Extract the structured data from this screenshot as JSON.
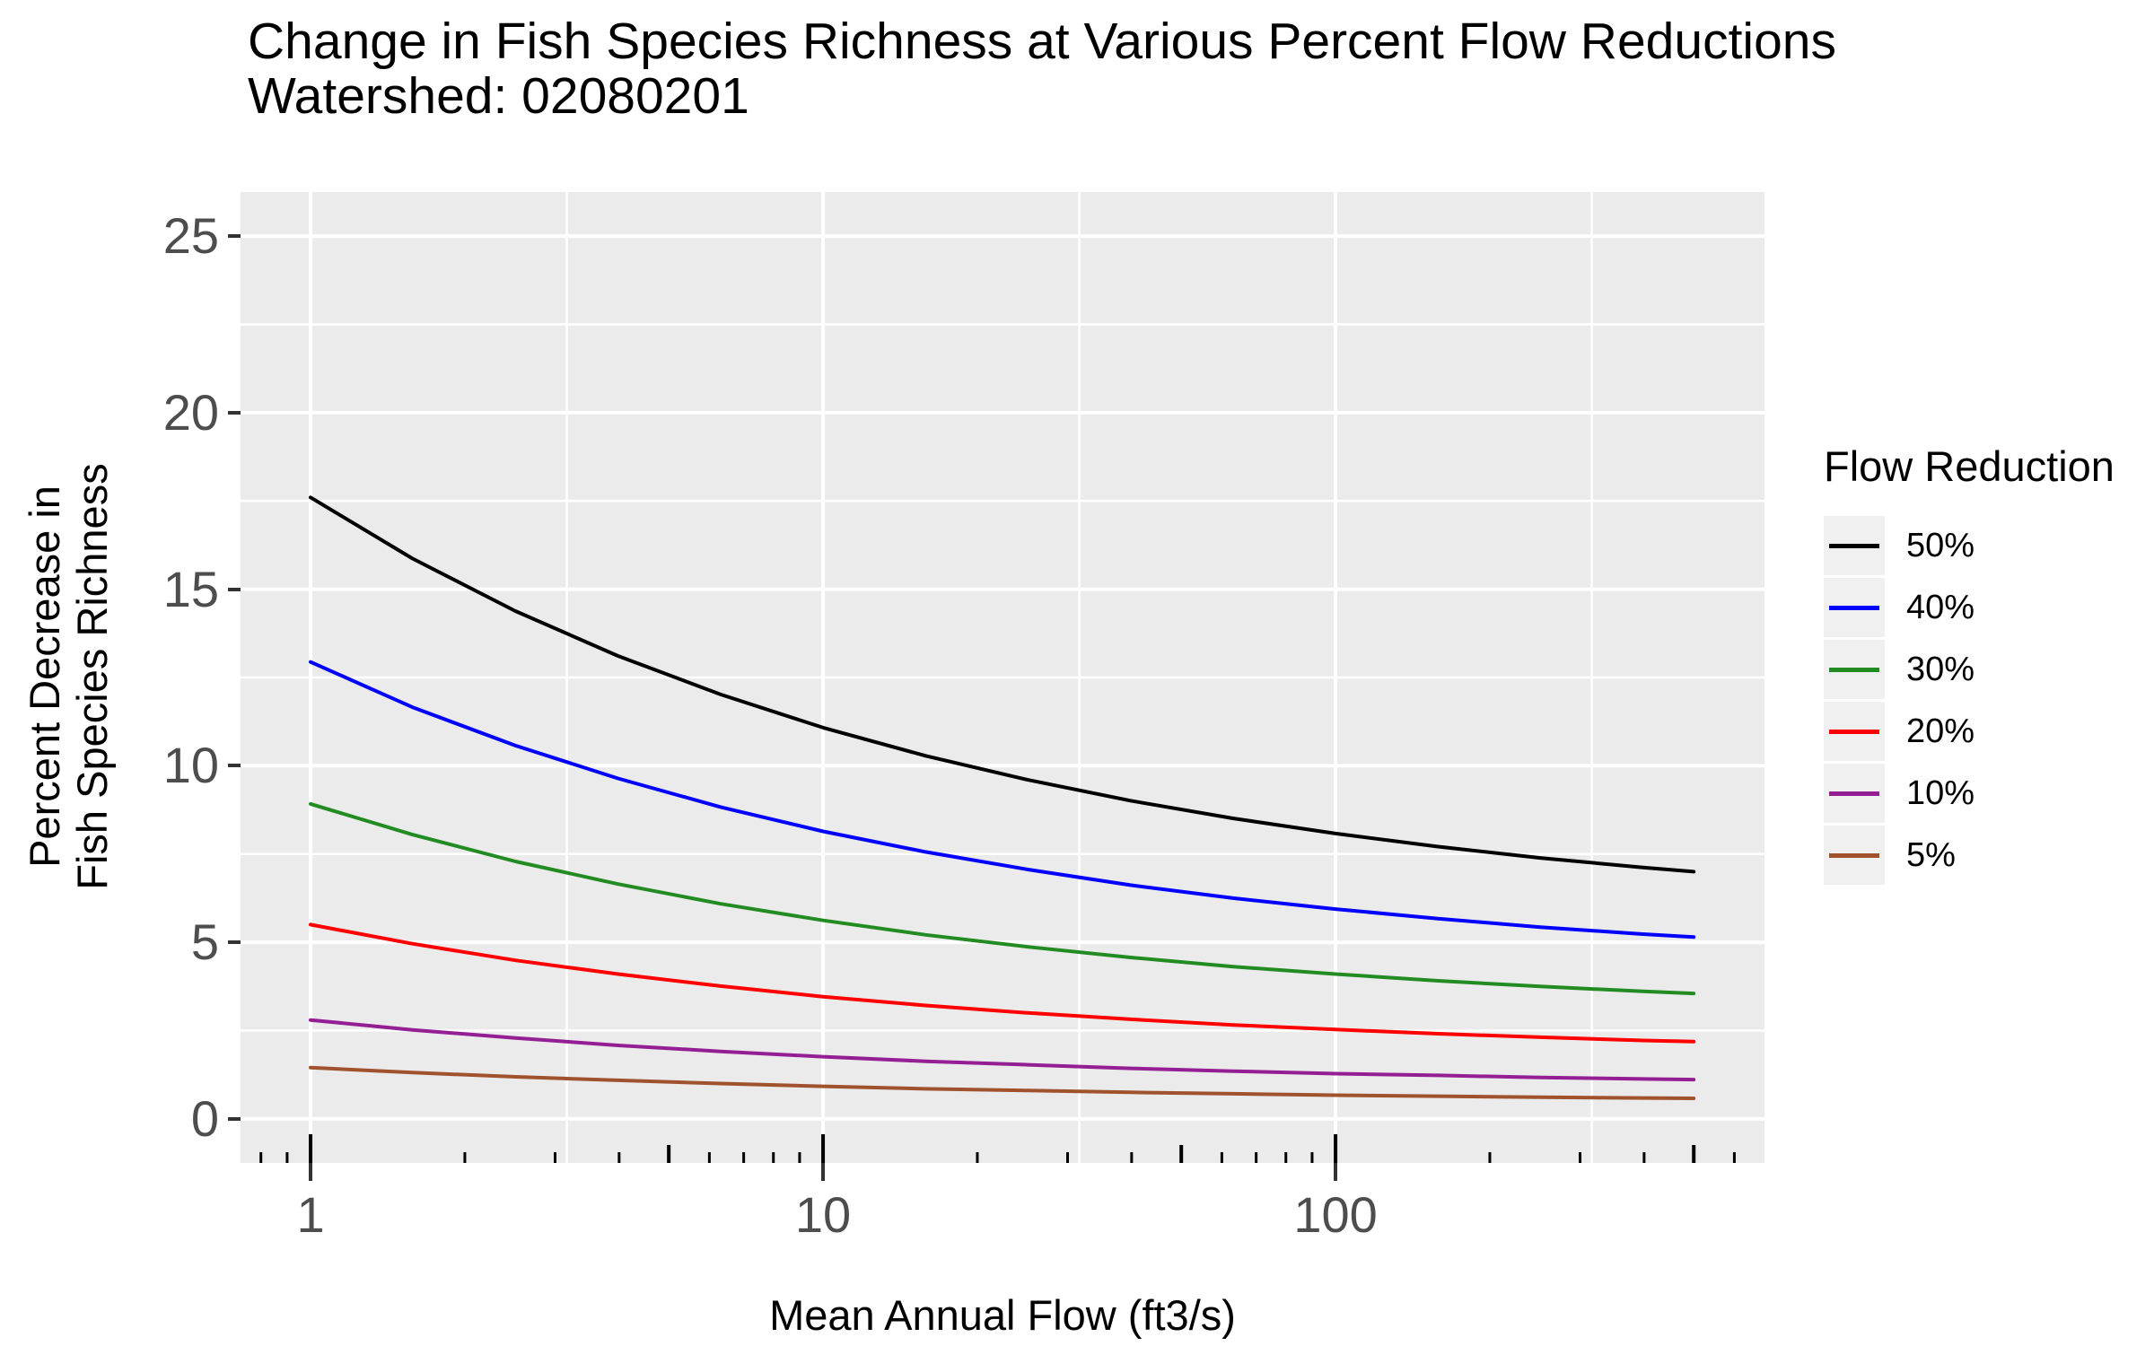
{
  "figure": {
    "title_line1": "Change in Fish Species Richness at Various Percent Flow Reductions",
    "title_line2": "Watershed: 02080201"
  },
  "colors": {
    "page_bg": "#FFFFFF",
    "panel_bg": "#EBEBEB",
    "grid_major": "#FFFFFF",
    "grid_minor": "#FFFFFF",
    "axis_tick": "#333333",
    "tick_label": "#4D4D4D",
    "text": "#000000",
    "legend_key_bg": "#F0F0F0"
  },
  "chart_data": {
    "type": "line",
    "title": "Change in Fish Species Richness at Various Percent Flow Reductions",
    "subtitle": "Watershed: 02080201",
    "xlabel": "Mean Annual Flow (ft3/s)",
    "ylabel_line1": "Percent Decrease in",
    "ylabel_line2": "Fish Species Richness",
    "x_scale": "log10",
    "grid": true,
    "xlim": [
      0.73,
      687
    ],
    "ylim": [
      -1.25,
      26.25
    ],
    "x_major_ticks": [
      1,
      10,
      100
    ],
    "x_tick_labels": [
      "1",
      "10",
      "100"
    ],
    "y_major_ticks": [
      0,
      5,
      10,
      15,
      20,
      25
    ],
    "y_tick_labels": [
      "0",
      "5",
      "10",
      "15",
      "20",
      "25"
    ],
    "y_minor_gridlines": [
      2.5,
      7.5,
      12.5,
      17.5,
      22.5
    ],
    "x_minor_gridlines": [
      3.162,
      31.62,
      316.2
    ],
    "logticks": {
      "long": [
        1,
        10,
        100
      ],
      "mid": [
        5,
        50,
        500
      ],
      "short": [
        0.8,
        0.9,
        2,
        3,
        4,
        6,
        7,
        8,
        9,
        20,
        30,
        40,
        60,
        70,
        80,
        90,
        200,
        300,
        400,
        600
      ]
    },
    "legend_position": "right",
    "legend_title": "Flow Reduction",
    "x": [
      1,
      1.58,
      2.51,
      3.98,
      6.31,
      10,
      15.85,
      25.1,
      39.8,
      63.1,
      100,
      158.5,
      251,
      398,
      500
    ],
    "series": [
      {
        "name": "50%",
        "color": "#000000",
        "values": [
          17.6,
          15.87,
          14.38,
          13.11,
          12.02,
          11.08,
          10.28,
          9.6,
          9.01,
          8.51,
          8.08,
          7.71,
          7.39,
          7.12,
          7.0
        ]
      },
      {
        "name": "40%",
        "color": "#0000FF",
        "values": [
          12.94,
          11.66,
          10.57,
          9.64,
          8.83,
          8.14,
          7.56,
          7.06,
          6.62,
          6.25,
          5.94,
          5.67,
          5.43,
          5.23,
          5.15
        ]
      },
      {
        "name": "30%",
        "color": "#228B22",
        "values": [
          8.92,
          8.05,
          7.29,
          6.65,
          6.09,
          5.62,
          5.21,
          4.87,
          4.57,
          4.31,
          4.1,
          3.91,
          3.75,
          3.61,
          3.55
        ]
      },
      {
        "name": "20%",
        "color": "#FF0000",
        "values": [
          5.5,
          4.96,
          4.49,
          4.1,
          3.76,
          3.46,
          3.21,
          3.0,
          2.82,
          2.66,
          2.53,
          2.41,
          2.31,
          2.22,
          2.19
        ]
      },
      {
        "name": "10%",
        "color": "#941E94",
        "values": [
          2.8,
          2.52,
          2.29,
          2.08,
          1.91,
          1.76,
          1.63,
          1.53,
          1.43,
          1.35,
          1.28,
          1.23,
          1.17,
          1.13,
          1.11
        ]
      },
      {
        "name": "5%",
        "color": "#A0522D",
        "values": [
          1.45,
          1.31,
          1.19,
          1.09,
          1.0,
          0.92,
          0.85,
          0.8,
          0.75,
          0.71,
          0.67,
          0.64,
          0.61,
          0.59,
          0.58
        ]
      }
    ]
  }
}
